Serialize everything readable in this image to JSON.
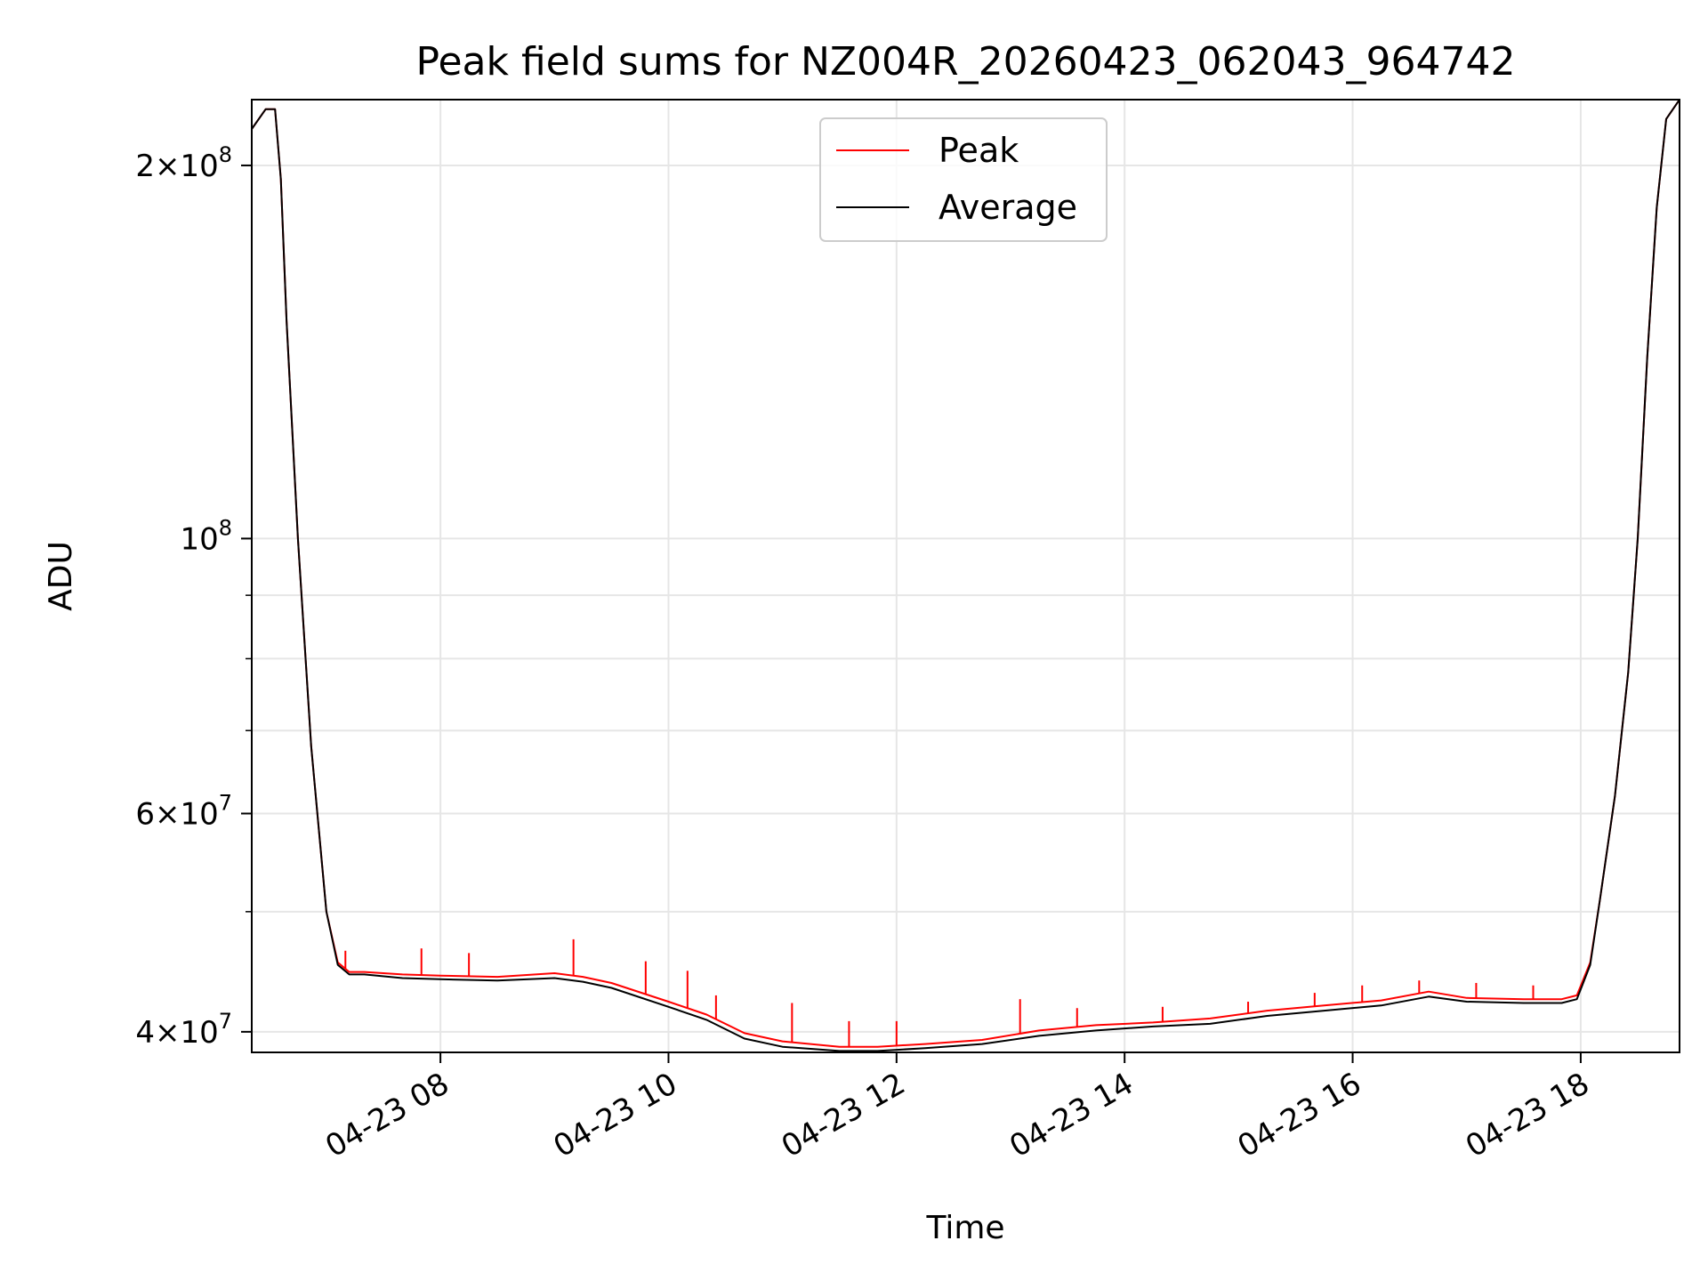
{
  "chart_data": {
    "type": "line",
    "title": "Peak field sums for NZ004R_20260423_062043_964742",
    "xlabel": "Time",
    "ylabel": "ADU",
    "x_axis": {
      "kind": "datetime",
      "range": [
        "2026-04-23T06:20:43",
        "2026-04-23T18:52:00"
      ],
      "tick_values": [
        "2026-04-23T08:00",
        "2026-04-23T10:00",
        "2026-04-23T12:00",
        "2026-04-23T14:00",
        "2026-04-23T16:00",
        "2026-04-23T18:00"
      ],
      "tick_labels": [
        "04-23 08",
        "04-23 10",
        "04-23 12",
        "04-23 14",
        "04-23 16",
        "04-23 18"
      ]
    },
    "y_axis": {
      "scale": "log",
      "ylim": [
        38500000,
        226000000
      ],
      "major_ticks": [
        40000000,
        60000000,
        100000000,
        200000000
      ],
      "major_tick_labels": [
        {
          "mant": "4",
          "exp": "7"
        },
        {
          "mant": "6",
          "exp": "7"
        },
        {
          "mant": "",
          "exp": "8"
        },
        {
          "mant": "2",
          "exp": "8"
        }
      ],
      "minor_ticks": [
        50000000,
        70000000,
        80000000,
        90000000
      ]
    },
    "grid": true,
    "legend": {
      "position": "upper center"
    },
    "series": [
      {
        "name": "Peak",
        "color": "#ff0000",
        "times": [
          "2026-04-23T06:20:43",
          "2026-04-23T06:28",
          "2026-04-23T06:33",
          "2026-04-23T06:36",
          "2026-04-23T06:39",
          "2026-04-23T06:45",
          "2026-04-23T06:52",
          "2026-04-23T07:00",
          "2026-04-23T07:06",
          "2026-04-23T07:12",
          "2026-04-23T07:20",
          "2026-04-23T07:40",
          "2026-04-23T08:00",
          "2026-04-23T08:30",
          "2026-04-23T09:00",
          "2026-04-23T09:15",
          "2026-04-23T09:30",
          "2026-04-23T10:00",
          "2026-04-23T10:20",
          "2026-04-23T10:40",
          "2026-04-23T11:00",
          "2026-04-23T11:30",
          "2026-04-23T11:50",
          "2026-04-23T12:15",
          "2026-04-23T12:45",
          "2026-04-23T13:15",
          "2026-04-23T13:45",
          "2026-04-23T14:15",
          "2026-04-23T14:45",
          "2026-04-23T15:15",
          "2026-04-23T15:45",
          "2026-04-23T16:15",
          "2026-04-23T16:40",
          "2026-04-23T17:00",
          "2026-04-23T17:30",
          "2026-04-23T17:50",
          "2026-04-23T17:58",
          "2026-04-23T18:05",
          "2026-04-23T18:10",
          "2026-04-23T18:18",
          "2026-04-23T18:25",
          "2026-04-23T18:30",
          "2026-04-23T18:35",
          "2026-04-23T18:40",
          "2026-04-23T18:45",
          "2026-04-23T18:52"
        ],
        "values": [
          214000000,
          222000000,
          222000000,
          195000000,
          150000000,
          100000000,
          68000000,
          50000000,
          45500000,
          44700000,
          44700000,
          44500000,
          44400000,
          44300000,
          44600000,
          44300000,
          43800000,
          42300000,
          41300000,
          39900000,
          39300000,
          38900000,
          38900000,
          39100000,
          39400000,
          40100000,
          40500000,
          40700000,
          41000000,
          41600000,
          42000000,
          42400000,
          43100000,
          42600000,
          42500000,
          42500000,
          42800000,
          45500000,
          51000000,
          62000000,
          78000000,
          100000000,
          140000000,
          185000000,
          218000000,
          226000000
        ],
        "spike_times": [
          "2026-04-23T07:10",
          "2026-04-23T07:50",
          "2026-04-23T08:15",
          "2026-04-23T09:10",
          "2026-04-23T09:48",
          "2026-04-23T10:10",
          "2026-04-23T10:25",
          "2026-04-23T11:05",
          "2026-04-23T11:35",
          "2026-04-23T12:00",
          "2026-04-23T13:05",
          "2026-04-23T13:35",
          "2026-04-23T14:20",
          "2026-04-23T15:05",
          "2026-04-23T15:40",
          "2026-04-23T16:05",
          "2026-04-23T16:35",
          "2026-04-23T17:05",
          "2026-04-23T17:35"
        ],
        "spike_values": [
          46500000,
          46700000,
          46300000,
          47500000,
          45600000,
          44800000,
          42800000,
          42200000,
          40800000,
          40800000,
          42500000,
          41800000,
          41900000,
          42300000,
          43000000,
          43600000,
          44000000,
          43800000,
          43600000
        ]
      },
      {
        "name": "Average",
        "color": "#000000",
        "times": [
          "2026-04-23T06:20:43",
          "2026-04-23T06:28",
          "2026-04-23T06:33",
          "2026-04-23T06:36",
          "2026-04-23T06:39",
          "2026-04-23T06:45",
          "2026-04-23T06:52",
          "2026-04-23T07:00",
          "2026-04-23T07:06",
          "2026-04-23T07:12",
          "2026-04-23T07:20",
          "2026-04-23T07:40",
          "2026-04-23T08:00",
          "2026-04-23T08:30",
          "2026-04-23T09:00",
          "2026-04-23T09:15",
          "2026-04-23T09:30",
          "2026-04-23T10:00",
          "2026-04-23T10:20",
          "2026-04-23T10:40",
          "2026-04-23T11:00",
          "2026-04-23T11:30",
          "2026-04-23T11:50",
          "2026-04-23T12:15",
          "2026-04-23T12:45",
          "2026-04-23T13:15",
          "2026-04-23T13:45",
          "2026-04-23T14:15",
          "2026-04-23T14:45",
          "2026-04-23T15:15",
          "2026-04-23T15:45",
          "2026-04-23T16:15",
          "2026-04-23T16:40",
          "2026-04-23T17:00",
          "2026-04-23T17:30",
          "2026-04-23T17:50",
          "2026-04-23T17:58",
          "2026-04-23T18:05",
          "2026-04-23T18:10",
          "2026-04-23T18:18",
          "2026-04-23T18:25",
          "2026-04-23T18:30",
          "2026-04-23T18:35",
          "2026-04-23T18:40",
          "2026-04-23T18:45",
          "2026-04-23T18:52"
        ],
        "values": [
          214000000,
          222000000,
          222000000,
          195000000,
          150000000,
          100000000,
          68000000,
          50000000,
          45300000,
          44500000,
          44500000,
          44200000,
          44100000,
          44000000,
          44200000,
          43900000,
          43400000,
          41900000,
          40900000,
          39500000,
          38900000,
          38600000,
          38600000,
          38800000,
          39100000,
          39700000,
          40100000,
          40400000,
          40600000,
          41200000,
          41600000,
          42000000,
          42700000,
          42300000,
          42200000,
          42200000,
          42500000,
          45300000,
          51000000,
          62000000,
          78000000,
          100000000,
          140000000,
          185000000,
          218000000,
          226000000
        ]
      }
    ]
  }
}
